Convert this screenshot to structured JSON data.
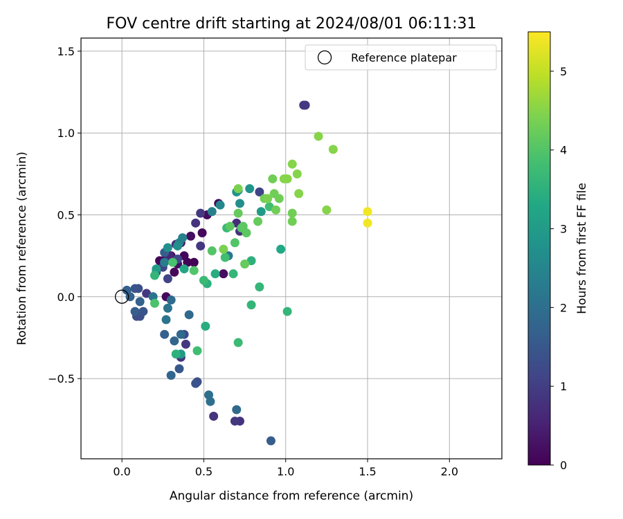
{
  "chart_data": {
    "type": "scatter",
    "title": "FOV centre drift starting at 2024/08/01 06:11:31",
    "xlabel": "Angular distance from reference (arcmin)",
    "ylabel": "Rotation from reference (arcmin)",
    "xlim": [
      -0.25,
      2.32
    ],
    "ylim": [
      -0.99,
      1.58
    ],
    "xticks": [
      0.0,
      0.5,
      1.0,
      1.5,
      2.0
    ],
    "xtick_labels": [
      "0.0",
      "0.5",
      "1.0",
      "1.5",
      "2.0"
    ],
    "yticks": [
      -0.5,
      0.0,
      0.5,
      1.0,
      1.5
    ],
    "ytick_labels": [
      "−0.5",
      "0.0",
      "0.5",
      "1.0",
      "1.5"
    ],
    "grid": true,
    "legend": {
      "label": "Reference platepar",
      "placement": "top-right",
      "marker": "open-circle"
    },
    "reference_point": {
      "x": 0.0,
      "y": 0.0
    },
    "colorbar": {
      "label": "Hours from first FF file",
      "colormap": "viridis",
      "range": [
        0,
        5.5
      ],
      "ticks": [
        0,
        1,
        2,
        3,
        4,
        5
      ],
      "tick_labels": [
        "0",
        "1",
        "2",
        "3",
        "4",
        "5"
      ]
    },
    "points": [
      {
        "x": 0.23,
        "y": 0.22,
        "c": 0.1
      },
      {
        "x": 0.27,
        "y": 0.24,
        "c": 0.05
      },
      {
        "x": 0.3,
        "y": 0.25,
        "c": 0.15
      },
      {
        "x": 0.32,
        "y": 0.15,
        "c": 0.1
      },
      {
        "x": 0.34,
        "y": 0.2,
        "c": 0.2
      },
      {
        "x": 0.36,
        "y": 0.33,
        "c": 0.3
      },
      {
        "x": 0.38,
        "y": 0.25,
        "c": 0.1
      },
      {
        "x": 0.4,
        "y": 0.21,
        "c": 0.05
      },
      {
        "x": 0.42,
        "y": 0.37,
        "c": 0.2
      },
      {
        "x": 0.44,
        "y": 0.21,
        "c": 0.0
      },
      {
        "x": 0.49,
        "y": 0.39,
        "c": 0.1
      },
      {
        "x": 0.52,
        "y": 0.5,
        "c": 0.15
      },
      {
        "x": 0.59,
        "y": 0.57,
        "c": 0.1
      },
      {
        "x": 0.62,
        "y": 0.14,
        "c": 0.2
      },
      {
        "x": 0.27,
        "y": 0.0,
        "c": 0.1
      },
      {
        "x": 0.29,
        "y": 0.25,
        "c": 0.6
      },
      {
        "x": 0.33,
        "y": 0.32,
        "c": 0.7
      },
      {
        "x": 0.45,
        "y": 0.45,
        "c": 0.8
      },
      {
        "x": 0.48,
        "y": 0.51,
        "c": 0.9
      },
      {
        "x": 0.48,
        "y": 0.31,
        "c": 0.9
      },
      {
        "x": 0.7,
        "y": 0.45,
        "c": 0.7
      },
      {
        "x": 0.72,
        "y": 0.4,
        "c": 0.8
      },
      {
        "x": 1.11,
        "y": 1.17,
        "c": 0.9
      },
      {
        "x": 1.12,
        "y": 1.17,
        "c": 0.9
      },
      {
        "x": 0.56,
        "y": -0.73,
        "c": 0.8
      },
      {
        "x": 0.72,
        "y": -0.76,
        "c": 0.8
      },
      {
        "x": 0.69,
        "y": -0.76,
        "c": 0.9
      },
      {
        "x": 0.36,
        "y": -0.37,
        "c": 0.9
      },
      {
        "x": 0.39,
        "y": -0.29,
        "c": 0.9
      },
      {
        "x": 0.15,
        "y": 0.02,
        "c": 0.9
      },
      {
        "x": 0.84,
        "y": 0.64,
        "c": 1.1
      },
      {
        "x": 0.25,
        "y": 0.18,
        "c": 1.1
      },
      {
        "x": 0.28,
        "y": 0.11,
        "c": 1.1
      },
      {
        "x": 0.34,
        "y": 0.23,
        "c": 1.2
      },
      {
        "x": 0.09,
        "y": -0.12,
        "c": 1.3
      },
      {
        "x": 0.11,
        "y": -0.12,
        "c": 1.3
      },
      {
        "x": 0.1,
        "y": 0.05,
        "c": 1.3
      },
      {
        "x": 0.13,
        "y": -0.09,
        "c": 1.4
      },
      {
        "x": 0.08,
        "y": 0.05,
        "c": 1.4
      },
      {
        "x": 0.38,
        "y": -0.23,
        "c": 1.2
      },
      {
        "x": 0.46,
        "y": -0.52,
        "c": 1.3
      },
      {
        "x": 0.35,
        "y": -0.44,
        "c": 1.5
      },
      {
        "x": 0.91,
        "y": -0.88,
        "c": 1.6
      },
      {
        "x": 0.45,
        "y": -0.53,
        "c": 1.4
      },
      {
        "x": 0.03,
        "y": 0.04,
        "c": 1.7
      },
      {
        "x": 0.05,
        "y": 0.0,
        "c": 1.7
      },
      {
        "x": 0.08,
        "y": -0.09,
        "c": 1.6
      },
      {
        "x": 0.11,
        "y": -0.03,
        "c": 1.7
      },
      {
        "x": 0.21,
        "y": 0.15,
        "c": 1.6
      },
      {
        "x": 0.26,
        "y": 0.27,
        "c": 1.6
      },
      {
        "x": 0.3,
        "y": -0.48,
        "c": 1.8
      },
      {
        "x": 0.32,
        "y": -0.27,
        "c": 1.8
      },
      {
        "x": 0.3,
        "y": -0.02,
        "c": 1.9
      },
      {
        "x": 0.36,
        "y": -0.23,
        "c": 1.9
      },
      {
        "x": 0.41,
        "y": -0.11,
        "c": 1.9
      },
      {
        "x": 0.26,
        "y": -0.23,
        "c": 1.7
      },
      {
        "x": 0.53,
        "y": -0.6,
        "c": 2.0
      },
      {
        "x": 0.54,
        "y": -0.64,
        "c": 2.0
      },
      {
        "x": 0.7,
        "y": -0.69,
        "c": 1.9
      },
      {
        "x": 0.27,
        "y": -0.14,
        "c": 2.1
      },
      {
        "x": 0.28,
        "y": -0.07,
        "c": 2.1
      },
      {
        "x": 0.19,
        "y": 0.0,
        "c": 2.1
      },
      {
        "x": 0.35,
        "y": 0.33,
        "c": 2.4
      },
      {
        "x": 0.37,
        "y": 0.36,
        "c": 2.4
      },
      {
        "x": 0.26,
        "y": 0.21,
        "c": 2.3
      },
      {
        "x": 0.55,
        "y": 0.52,
        "c": 2.4
      },
      {
        "x": 0.6,
        "y": 0.56,
        "c": 2.5
      },
      {
        "x": 0.65,
        "y": 0.25,
        "c": 2.2
      },
      {
        "x": 0.71,
        "y": 0.65,
        "c": 2.6
      },
      {
        "x": 0.72,
        "y": 0.57,
        "c": 2.7
      },
      {
        "x": 0.7,
        "y": 0.64,
        "c": 2.8
      },
      {
        "x": 0.78,
        "y": 0.66,
        "c": 2.8
      },
      {
        "x": 0.28,
        "y": 0.3,
        "c": 2.7
      },
      {
        "x": 0.34,
        "y": 0.31,
        "c": 2.7
      },
      {
        "x": 0.36,
        "y": -0.35,
        "c": 3.0
      },
      {
        "x": 0.21,
        "y": 0.17,
        "c": 3.0
      },
      {
        "x": 0.85,
        "y": 0.52,
        "c": 3.0
      },
      {
        "x": 0.97,
        "y": 0.29,
        "c": 3.3
      },
      {
        "x": 0.38,
        "y": 0.17,
        "c": 3.3
      },
      {
        "x": 0.57,
        "y": 0.14,
        "c": 3.4
      },
      {
        "x": 0.51,
        "y": -0.18,
        "c": 3.4
      },
      {
        "x": 0.33,
        "y": -0.35,
        "c": 3.5
      },
      {
        "x": 0.2,
        "y": 0.13,
        "c": 3.6
      },
      {
        "x": 0.52,
        "y": 0.08,
        "c": 3.5
      },
      {
        "x": 0.68,
        "y": 0.14,
        "c": 3.6
      },
      {
        "x": 0.79,
        "y": 0.22,
        "c": 3.5
      },
      {
        "x": 0.79,
        "y": -0.05,
        "c": 3.6
      },
      {
        "x": 0.84,
        "y": 0.06,
        "c": 3.6
      },
      {
        "x": 1.01,
        "y": -0.09,
        "c": 3.6
      },
      {
        "x": 0.71,
        "y": -0.28,
        "c": 3.7
      },
      {
        "x": 0.64,
        "y": 0.42,
        "c": 3.7
      },
      {
        "x": 0.5,
        "y": 0.1,
        "c": 3.7
      },
      {
        "x": 0.46,
        "y": -0.33,
        "c": 3.8
      },
      {
        "x": 0.63,
        "y": 0.24,
        "c": 3.8
      },
      {
        "x": 0.9,
        "y": 0.55,
        "c": 3.8
      },
      {
        "x": 0.31,
        "y": 0.21,
        "c": 3.9
      },
      {
        "x": 0.2,
        "y": -0.04,
        "c": 3.9
      },
      {
        "x": 0.44,
        "y": 0.16,
        "c": 4.0
      },
      {
        "x": 0.55,
        "y": 0.28,
        "c": 4.0
      },
      {
        "x": 0.69,
        "y": 0.33,
        "c": 4.0
      },
      {
        "x": 0.73,
        "y": 0.42,
        "c": 4.0
      },
      {
        "x": 0.66,
        "y": 0.43,
        "c": 4.1
      },
      {
        "x": 0.74,
        "y": 0.43,
        "c": 4.1
      },
      {
        "x": 0.76,
        "y": 0.39,
        "c": 4.1
      },
      {
        "x": 0.75,
        "y": 0.2,
        "c": 4.2
      },
      {
        "x": 0.71,
        "y": 0.51,
        "c": 4.2
      },
      {
        "x": 0.83,
        "y": 0.46,
        "c": 4.2
      },
      {
        "x": 0.87,
        "y": 0.6,
        "c": 4.3
      },
      {
        "x": 0.94,
        "y": 0.53,
        "c": 4.3
      },
      {
        "x": 0.92,
        "y": 0.72,
        "c": 4.3
      },
      {
        "x": 0.93,
        "y": 0.63,
        "c": 4.3
      },
      {
        "x": 0.96,
        "y": 0.6,
        "c": 4.3
      },
      {
        "x": 1.04,
        "y": 0.51,
        "c": 4.3
      },
      {
        "x": 1.04,
        "y": 0.46,
        "c": 4.3
      },
      {
        "x": 0.71,
        "y": 0.66,
        "c": 4.4
      },
      {
        "x": 0.62,
        "y": 0.29,
        "c": 4.4
      },
      {
        "x": 0.89,
        "y": 0.6,
        "c": 4.4
      },
      {
        "x": 0.99,
        "y": 0.72,
        "c": 4.5
      },
      {
        "x": 1.01,
        "y": 0.72,
        "c": 4.5
      },
      {
        "x": 1.04,
        "y": 0.81,
        "c": 4.5
      },
      {
        "x": 1.07,
        "y": 0.75,
        "c": 4.5
      },
      {
        "x": 1.08,
        "y": 0.63,
        "c": 4.5
      },
      {
        "x": 1.2,
        "y": 0.98,
        "c": 4.5
      },
      {
        "x": 1.25,
        "y": 0.53,
        "c": 4.5
      },
      {
        "x": 1.29,
        "y": 0.9,
        "c": 4.5
      },
      {
        "x": 1.5,
        "y": 0.52,
        "c": 5.4
      },
      {
        "x": 1.5,
        "y": 0.45,
        "c": 5.4
      }
    ]
  }
}
